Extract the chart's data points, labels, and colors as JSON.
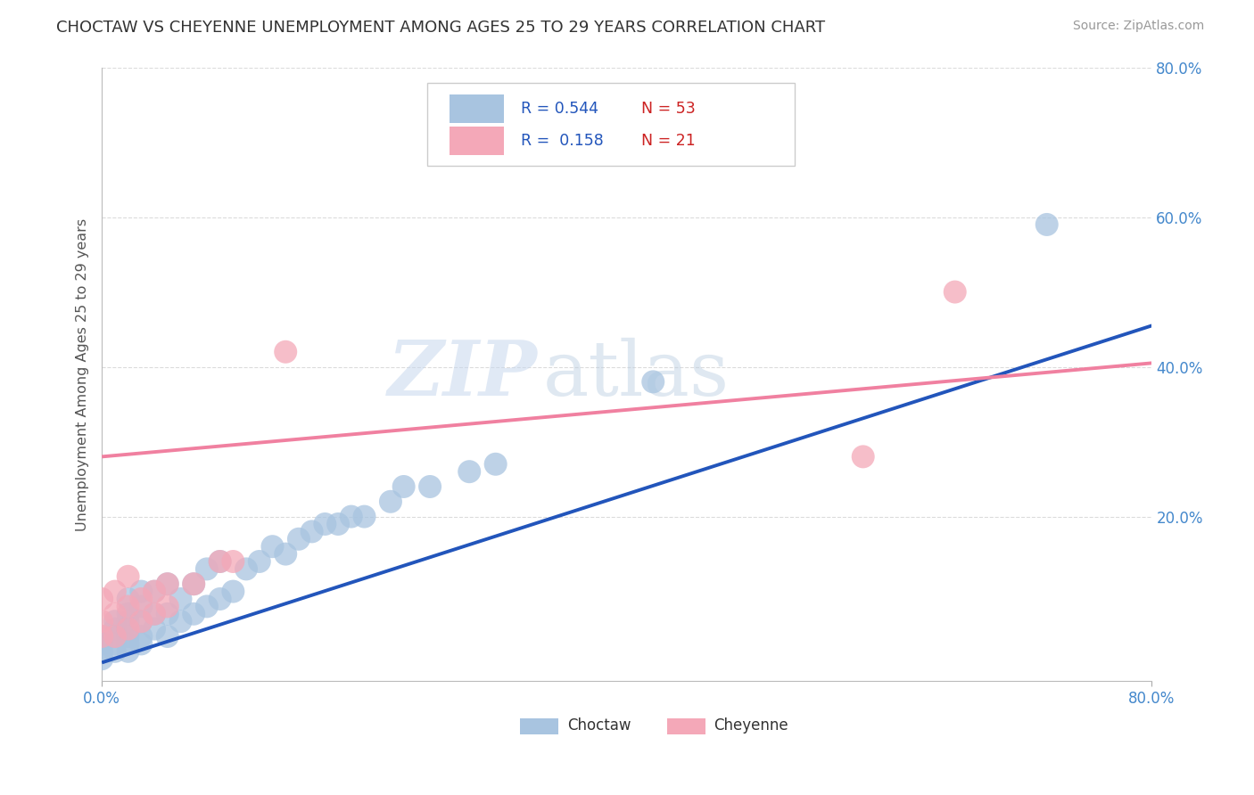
{
  "title": "CHOCTAW VS CHEYENNE UNEMPLOYMENT AMONG AGES 25 TO 29 YEARS CORRELATION CHART",
  "source_text": "Source: ZipAtlas.com",
  "ylabel": "Unemployment Among Ages 25 to 29 years",
  "xlim": [
    0.0,
    0.8
  ],
  "ylim": [
    -0.02,
    0.8
  ],
  "xtick_positions": [
    0.0,
    0.8
  ],
  "xtick_labels": [
    "0.0%",
    "80.0%"
  ],
  "ytick_vals": [
    0.2,
    0.4,
    0.6,
    0.8
  ],
  "ytick_labels": [
    "20.0%",
    "40.0%",
    "60.0%",
    "80.0%"
  ],
  "choctaw_R": 0.544,
  "choctaw_N": 53,
  "cheyenne_R": 0.158,
  "cheyenne_N": 21,
  "choctaw_color": "#a8c4e0",
  "cheyenne_color": "#f4a8b8",
  "choctaw_line_color": "#2255bb",
  "cheyenne_line_color": "#f080a0",
  "watermark_zip": "ZIP",
  "watermark_atlas": "atlas",
  "background_color": "#ffffff",
  "grid_color": "#cccccc",
  "title_color": "#333333",
  "axis_label_color": "#555555",
  "tick_label_color": "#4488cc",
  "legend_R_color": "#2255bb",
  "legend_N_color": "#cc2222",
  "choctaw_x": [
    0.0,
    0.0,
    0.0,
    0.0,
    0.01,
    0.01,
    0.01,
    0.01,
    0.01,
    0.02,
    0.02,
    0.02,
    0.02,
    0.02,
    0.02,
    0.02,
    0.03,
    0.03,
    0.03,
    0.03,
    0.03,
    0.04,
    0.04,
    0.04,
    0.05,
    0.05,
    0.05,
    0.06,
    0.06,
    0.07,
    0.07,
    0.08,
    0.08,
    0.09,
    0.09,
    0.1,
    0.11,
    0.12,
    0.13,
    0.14,
    0.15,
    0.16,
    0.17,
    0.18,
    0.19,
    0.2,
    0.22,
    0.23,
    0.25,
    0.28,
    0.3,
    0.42,
    0.72
  ],
  "choctaw_y": [
    0.01,
    0.02,
    0.03,
    0.04,
    0.02,
    0.03,
    0.04,
    0.05,
    0.06,
    0.02,
    0.03,
    0.04,
    0.05,
    0.06,
    0.07,
    0.09,
    0.03,
    0.04,
    0.06,
    0.08,
    0.1,
    0.05,
    0.07,
    0.1,
    0.04,
    0.07,
    0.11,
    0.06,
    0.09,
    0.07,
    0.11,
    0.08,
    0.13,
    0.09,
    0.14,
    0.1,
    0.13,
    0.14,
    0.16,
    0.15,
    0.17,
    0.18,
    0.19,
    0.19,
    0.2,
    0.2,
    0.22,
    0.24,
    0.24,
    0.26,
    0.27,
    0.38,
    0.59
  ],
  "cheyenne_x": [
    0.0,
    0.0,
    0.0,
    0.01,
    0.01,
    0.01,
    0.02,
    0.02,
    0.02,
    0.03,
    0.03,
    0.04,
    0.04,
    0.05,
    0.05,
    0.07,
    0.09,
    0.1,
    0.14,
    0.58,
    0.65
  ],
  "cheyenne_y": [
    0.04,
    0.06,
    0.09,
    0.04,
    0.07,
    0.1,
    0.05,
    0.08,
    0.12,
    0.06,
    0.09,
    0.07,
    0.1,
    0.08,
    0.11,
    0.11,
    0.14,
    0.14,
    0.42,
    0.28,
    0.5
  ],
  "choctaw_line_x": [
    0.0,
    0.8
  ],
  "choctaw_line_y": [
    0.005,
    0.455
  ],
  "cheyenne_line_x": [
    0.0,
    0.8
  ],
  "cheyenne_line_y": [
    0.28,
    0.405
  ]
}
